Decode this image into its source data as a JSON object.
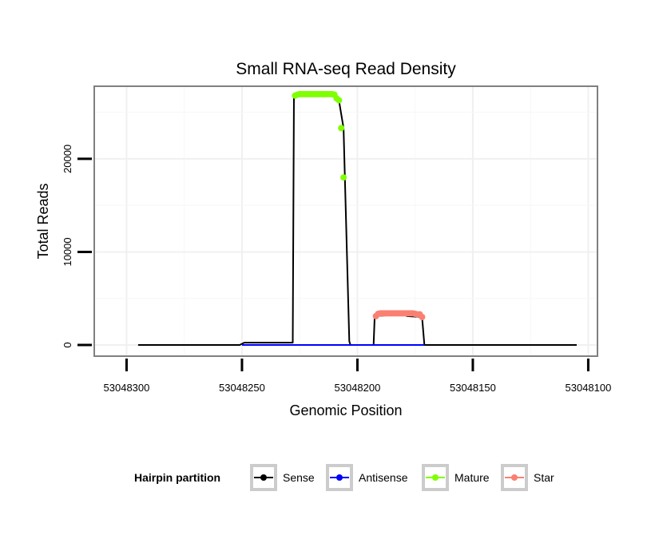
{
  "chart_data": {
    "type": "line",
    "title": "Small RNA-seq Read Density",
    "xlabel": "Genomic Position",
    "ylabel": "Total Reads",
    "x_reversed": true,
    "xlim": [
      53048314,
      53048096
    ],
    "ylim": [
      -1200,
      27800
    ],
    "x_ticks": [
      53048300,
      53048250,
      53048200,
      53048150,
      53048100
    ],
    "x_tick_labels": [
      "53048300",
      "53048250",
      "53048200",
      "53048150",
      "53048100"
    ],
    "y_ticks": [
      0,
      10000,
      20000
    ],
    "y_tick_labels": [
      "0",
      "10000",
      "20000"
    ],
    "grid": true,
    "legend": {
      "title": "Hairpin partition",
      "position": "bottom",
      "items": [
        {
          "label": "Sense",
          "color": "#000000"
        },
        {
          "label": "Antisense",
          "color": "#0000ff"
        },
        {
          "label": "Mature",
          "color": "#7fff00"
        },
        {
          "label": "Star",
          "color": "#fa8072"
        }
      ]
    },
    "series": [
      {
        "name": "Sense",
        "color": "#000000",
        "kind": "line",
        "x": [
          53048295,
          53048251,
          53048249,
          53048228,
          53048227.5,
          53048210,
          53048208,
          53048206,
          53048203.5,
          53048203,
          53048193,
          53048192.5,
          53048180,
          53048178.5,
          53048172,
          53048171,
          53048105
        ],
        "y": [
          0,
          0,
          250,
          250,
          26800,
          26800,
          26300,
          23300,
          400,
          0,
          0,
          3100,
          3300,
          3100,
          3000,
          0,
          0
        ]
      },
      {
        "name": "Antisense",
        "color": "#0000ff",
        "kind": "line",
        "x": [
          53048250,
          53048171
        ],
        "y": [
          0,
          0
        ]
      },
      {
        "name": "Mature",
        "color": "#7fff00",
        "kind": "points",
        "x": [
          53048227,
          53048226,
          53048225,
          53048224,
          53048223,
          53048222,
          53048221,
          53048220,
          53048219,
          53048218,
          53048217,
          53048216,
          53048215,
          53048214,
          53048213,
          53048212,
          53048211,
          53048210,
          53048209,
          53048208,
          53048207,
          53048206
        ],
        "y": [
          26800,
          26900,
          26950,
          26950,
          26950,
          26950,
          26950,
          26950,
          26950,
          26950,
          26950,
          26950,
          26950,
          26950,
          26950,
          26950,
          26950,
          26900,
          26500,
          26300,
          23300,
          18000
        ]
      },
      {
        "name": "Star",
        "color": "#fa8072",
        "kind": "points",
        "x": [
          53048192,
          53048191,
          53048190,
          53048189,
          53048188,
          53048187,
          53048186,
          53048185,
          53048184,
          53048183,
          53048182,
          53048181,
          53048180,
          53048179,
          53048178,
          53048177,
          53048176,
          53048175,
          53048174,
          53048173,
          53048172
        ],
        "y": [
          3100,
          3350,
          3400,
          3400,
          3400,
          3400,
          3400,
          3400,
          3400,
          3400,
          3400,
          3400,
          3400,
          3400,
          3400,
          3400,
          3400,
          3350,
          3300,
          3300,
          3000
        ]
      }
    ]
  }
}
